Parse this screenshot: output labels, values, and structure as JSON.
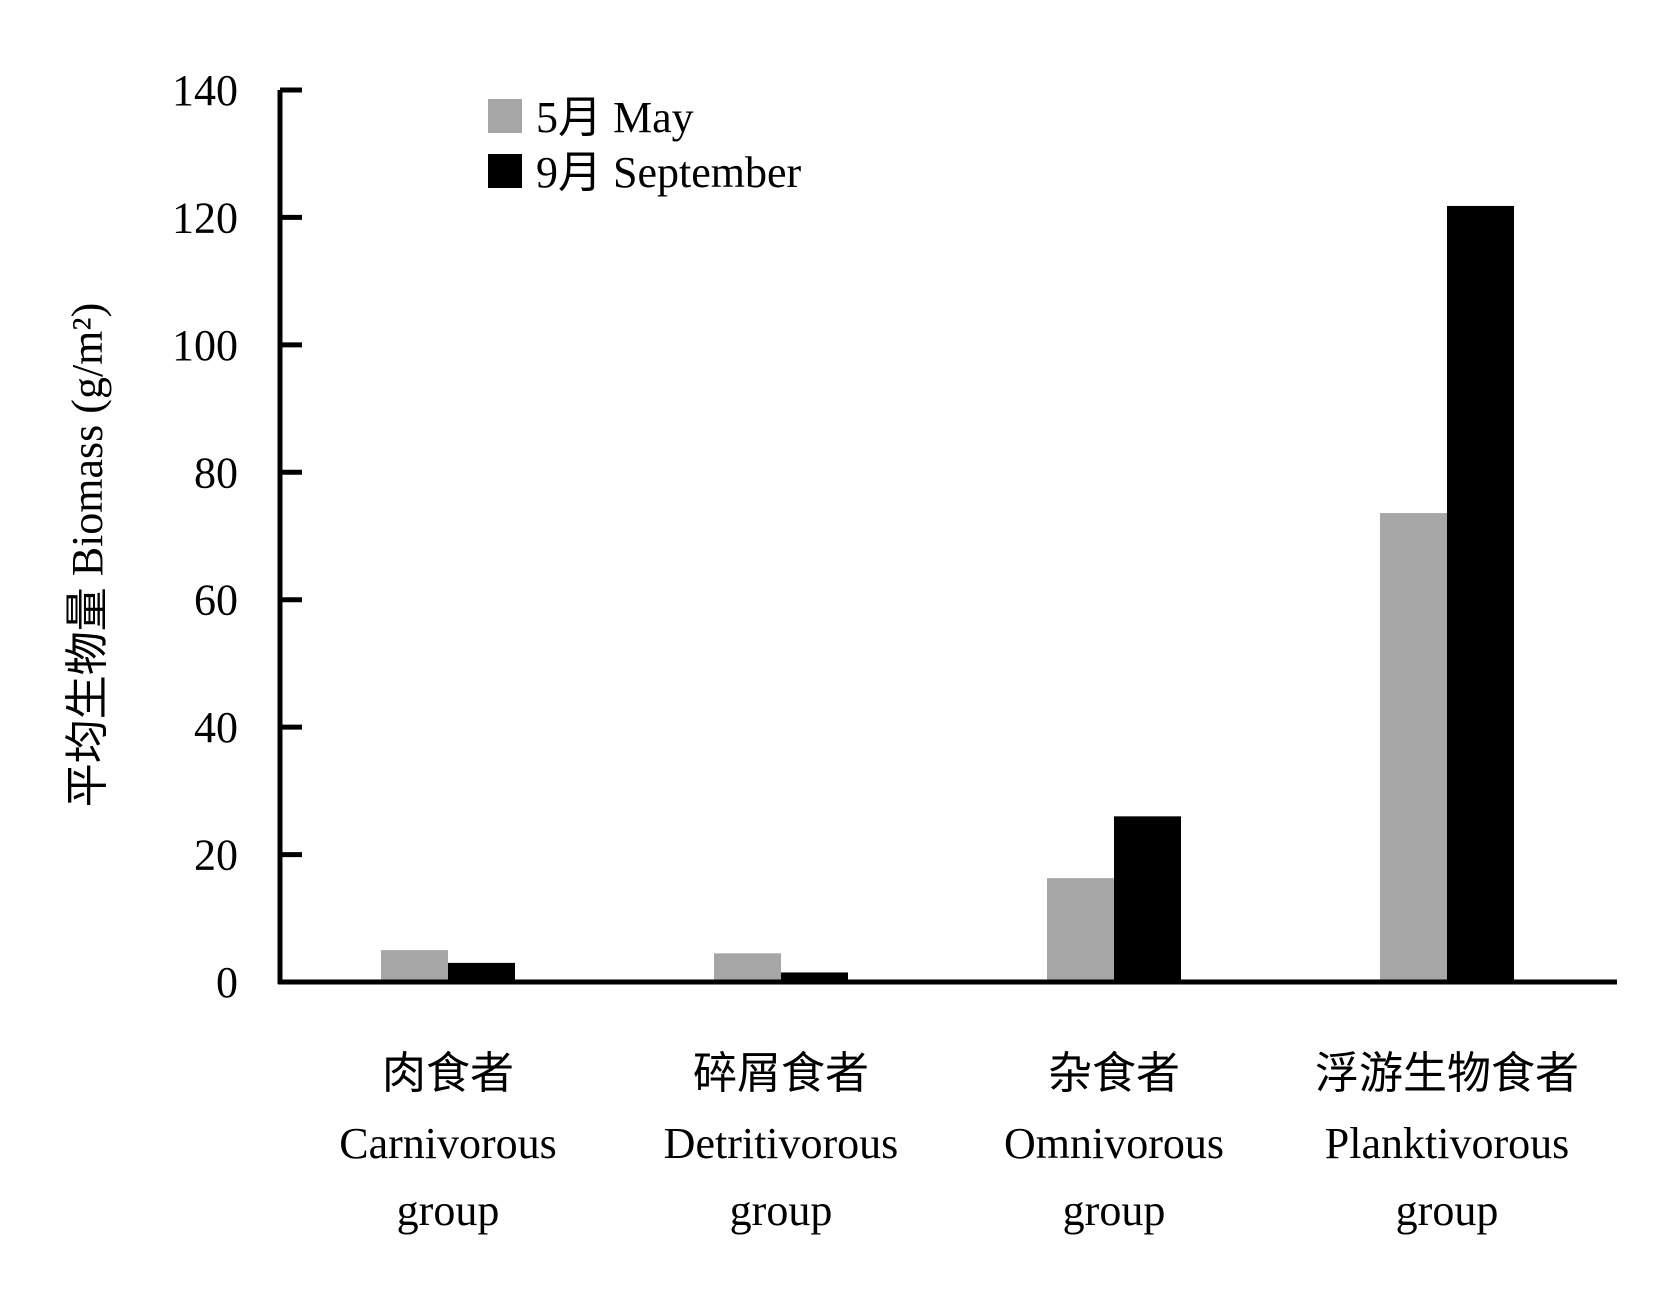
{
  "chart_data": {
    "type": "bar",
    "categories": [
      [
        "肉食者",
        "Carnivorous",
        "group"
      ],
      [
        "碎屑食者",
        "Detritivorous",
        "group"
      ],
      [
        "杂食者",
        "Omnivorous",
        "group"
      ],
      [
        "浮游生物食者",
        "Planktivorous",
        "group"
      ]
    ],
    "series": [
      {
        "name": "5月 May",
        "color": "#a6a6a6",
        "values": [
          5.0,
          4.5,
          16.3,
          73.6
        ]
      },
      {
        "name": "9月 September",
        "color": "#000000",
        "values": [
          3.0,
          1.5,
          26.0,
          121.8
        ]
      }
    ],
    "ylabel": "平均生物量  Biomass (g/m²)",
    "ylim": [
      0,
      140
    ],
    "yticks": [
      0,
      20,
      40,
      60,
      80,
      100,
      120,
      140
    ],
    "grid": false,
    "legend_position": "top-left"
  }
}
